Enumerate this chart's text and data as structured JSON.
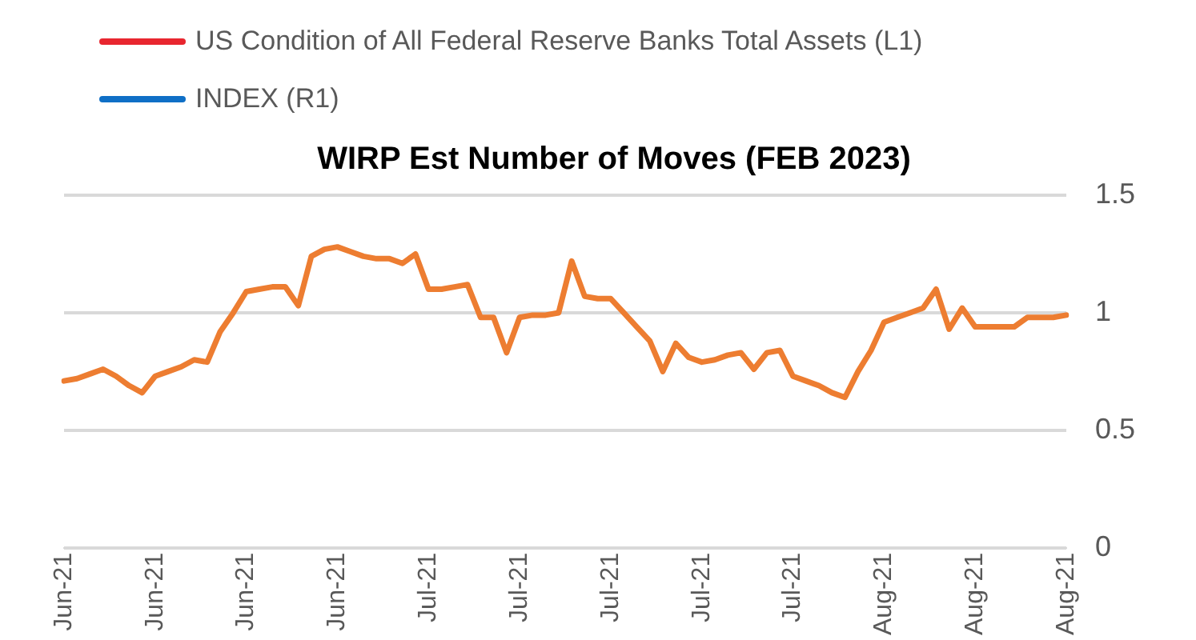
{
  "chart_data": {
    "type": "line",
    "title": "WIRP Est Number of Moves (FEB 2023)",
    "categories": [
      "Jun-21",
      null,
      null,
      null,
      null,
      null,
      null,
      "Jun-21",
      null,
      null,
      null,
      null,
      null,
      null,
      "Jun-21",
      null,
      null,
      null,
      null,
      null,
      null,
      "Jun-21",
      null,
      null,
      null,
      null,
      null,
      null,
      "Jul-21",
      null,
      null,
      null,
      null,
      null,
      null,
      "Jul-21",
      null,
      null,
      null,
      null,
      null,
      null,
      "Jul-21",
      null,
      null,
      null,
      null,
      null,
      null,
      "Jul-21",
      null,
      null,
      null,
      null,
      null,
      null,
      "Jul-21",
      null,
      null,
      null,
      null,
      null,
      null,
      "Aug-21",
      null,
      null,
      null,
      null,
      null,
      null,
      "Aug-21",
      null,
      null,
      null,
      null,
      null,
      null,
      "Aug-21"
    ],
    "series": [
      {
        "name": "US Condition of All Federal Reserve Banks Total Assets  (L1)",
        "color": "#e8262f",
        "values": [
          null,
          null,
          null,
          null,
          null,
          null,
          null,
          null,
          null,
          null,
          null,
          null,
          null,
          null,
          null,
          null,
          null,
          null,
          null,
          null,
          null,
          null,
          null,
          null,
          null,
          null,
          null,
          null,
          null,
          null,
          null,
          null,
          null,
          null,
          null,
          null,
          null,
          null,
          null,
          null,
          null,
          null,
          null,
          null,
          null,
          null,
          null,
          null,
          null,
          null,
          null,
          null,
          null,
          null,
          null,
          null,
          null,
          null,
          null,
          null,
          null,
          null,
          null,
          null,
          null,
          null,
          null,
          null,
          null,
          null,
          null,
          null,
          null,
          null,
          null,
          null,
          null,
          null
        ]
      },
      {
        "name": "INDEX  (R1)",
        "color": "#0f6fc6",
        "values": [
          null,
          null,
          null,
          null,
          null,
          null,
          null,
          null,
          null,
          null,
          null,
          null,
          null,
          null,
          null,
          null,
          null,
          null,
          null,
          null,
          null,
          null,
          null,
          null,
          null,
          null,
          null,
          null,
          null,
          null,
          null,
          null,
          null,
          null,
          null,
          null,
          null,
          null,
          null,
          null,
          null,
          null,
          null,
          null,
          null,
          null,
          null,
          null,
          null,
          null,
          null,
          null,
          null,
          null,
          null,
          null,
          null,
          null,
          null,
          null,
          null,
          null,
          null,
          null,
          null,
          null,
          null,
          null,
          null,
          null,
          null,
          null,
          null,
          null,
          null,
          null,
          null,
          null
        ]
      },
      {
        "color": "#ed7d31",
        "values": [
          0.71,
          0.72,
          0.74,
          0.76,
          0.73,
          0.69,
          0.66,
          0.73,
          0.75,
          0.77,
          0.8,
          0.79,
          0.92,
          1.0,
          1.09,
          1.1,
          1.11,
          1.11,
          1.03,
          1.24,
          1.27,
          1.28,
          1.26,
          1.24,
          1.23,
          1.23,
          1.21,
          1.25,
          1.1,
          1.1,
          1.11,
          1.12,
          0.98,
          0.98,
          0.83,
          0.98,
          0.99,
          0.99,
          1.0,
          1.22,
          1.07,
          1.06,
          1.06,
          1.0,
          0.94,
          0.88,
          0.75,
          0.87,
          0.81,
          0.79,
          0.8,
          0.82,
          0.83,
          0.76,
          0.83,
          0.84,
          0.73,
          0.71,
          0.69,
          0.66,
          0.64,
          0.75,
          0.84,
          0.96,
          0.98,
          1.0,
          1.02,
          1.1,
          0.93,
          1.02,
          0.94,
          0.94,
          0.94,
          0.94,
          0.98,
          0.98,
          0.98,
          0.99
        ]
      }
    ],
    "ylim": [
      0,
      1.5
    ],
    "yticks": [
      0,
      0.5,
      1,
      1.5
    ],
    "grid": "y",
    "legend": "top left",
    "marker": "none",
    "line_style": "solid"
  }
}
